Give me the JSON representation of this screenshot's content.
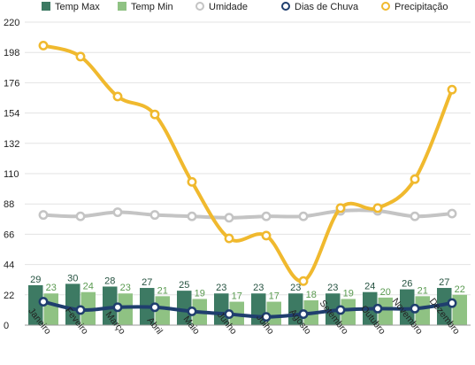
{
  "chart_data": {
    "type": "bar",
    "categories": [
      "Janeiro",
      "Feveiro",
      "Março",
      "Abril",
      "Maio",
      "Junho",
      "Julho",
      "Agosto",
      "Setembro",
      "Outubro",
      "Novembro",
      "Dezembro"
    ],
    "ylim": [
      0,
      220
    ],
    "yticks": [
      0,
      22,
      44,
      66,
      88,
      110,
      132,
      154,
      176,
      198,
      220
    ],
    "grid": true,
    "legend_position": "top",
    "series": [
      {
        "name": "Temp Max",
        "type": "bar",
        "color": "#3d7a63",
        "values": [
          29,
          30,
          28,
          27,
          25,
          23,
          23,
          23,
          23,
          24,
          26,
          27
        ],
        "labels": true
      },
      {
        "name": "Temp Min",
        "type": "bar",
        "color": "#8fc283",
        "values": [
          23,
          24,
          23,
          21,
          19,
          17,
          17,
          18,
          19,
          20,
          21,
          22
        ],
        "labels": true
      },
      {
        "name": "Umidade",
        "type": "line",
        "color": "#c4c4c4",
        "values": [
          80,
          79,
          82,
          80,
          79,
          78,
          79,
          79,
          83,
          83,
          79,
          81
        ]
      },
      {
        "name": "Dias de Chuva",
        "type": "line",
        "color": "#1f3e6e",
        "values": [
          17,
          11,
          13,
          13,
          10,
          8,
          6,
          8,
          11,
          12,
          12,
          16
        ]
      },
      {
        "name": "Precipitação",
        "type": "line",
        "color": "#f0b92e",
        "values": [
          203,
          195,
          166,
          153,
          104,
          63,
          65,
          32,
          85,
          85,
          106,
          171
        ]
      }
    ]
  }
}
